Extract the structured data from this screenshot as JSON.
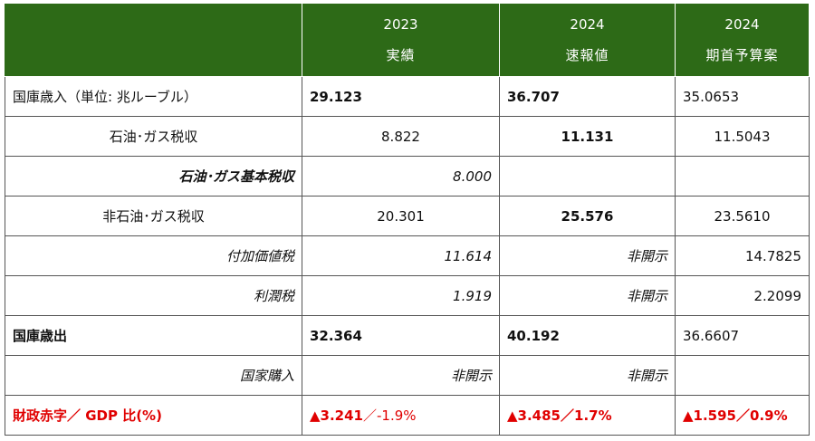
{
  "header": {
    "col1": {
      "year": "2023",
      "sub": "実績"
    },
    "col2": {
      "year": "2024",
      "sub": "速報値"
    },
    "col3": {
      "year": "2024",
      "sub": "期首予算案"
    }
  },
  "rows": [
    {
      "label": "国庫歳入（単位: 兆ルーブル）",
      "v1": "29.123",
      "v2": "36.707",
      "v3": "35.0653"
    },
    {
      "label": "石油･ガス税収",
      "v1": "8.822",
      "v2": "11.131",
      "v3": "11.5043"
    },
    {
      "label": "石油･ガス基本税収",
      "v1": "8.000",
      "v2": "",
      "v3": ""
    },
    {
      "label": "非石油･ガス税収",
      "v1": "20.301",
      "v2": "25.576",
      "v3": "23.5610"
    },
    {
      "label": "付加価値税",
      "v1": "11.614",
      "v2": "非開示",
      "v3": "14.7825"
    },
    {
      "label": "利潤税",
      "v1": "1.919",
      "v2": "非開示",
      "v3": "2.2099"
    },
    {
      "label": "国庫歳出",
      "v1": "32.364",
      "v2": "40.192",
      "v3": "36.6607"
    },
    {
      "label": "国家購入",
      "v1": "非開示",
      "v2": "非開示",
      "v3": ""
    },
    {
      "label": "財政赤字／ GDP 比(%)",
      "v1": {
        "tri": "▲",
        "a": "3.241",
        "sep": "／",
        "b": "-1.9%"
      },
      "v2": {
        "tri": "▲",
        "a": "3.485",
        "sep": "／",
        "b": "1.7%"
      },
      "v3": {
        "tri": "▲",
        "a": "1.595",
        "sep": "／",
        "b": "0.9%"
      }
    }
  ],
  "colors": {
    "header_bg": "#2d6a17",
    "deficit_red": "#e00000"
  }
}
